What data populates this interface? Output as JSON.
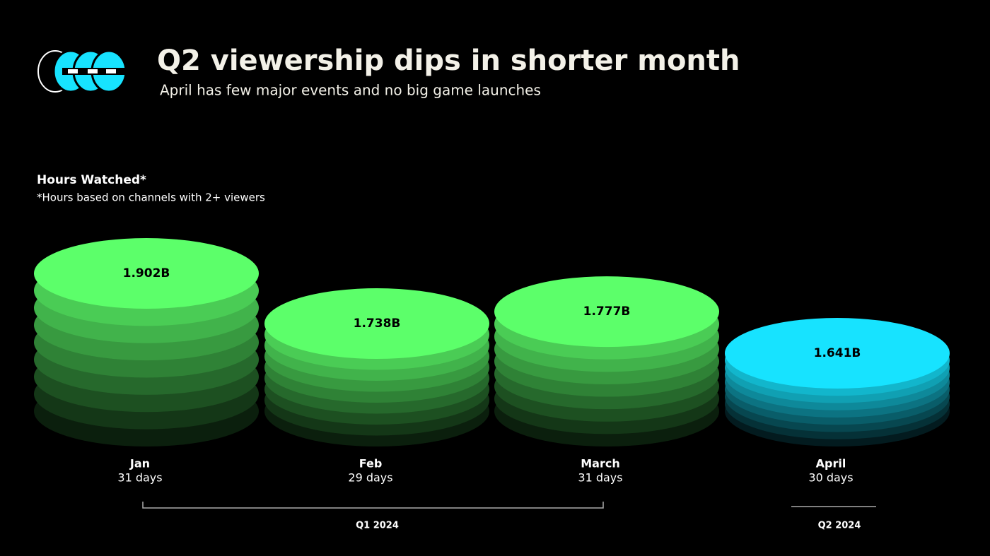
{
  "chart_data": {
    "type": "bar",
    "title": "Q2 viewership dips in shorter month",
    "subtitle": "April has few major events and no big game launches",
    "axis_label": "Hours Watched*",
    "note": "*Hours based on channels with 2+ viewers",
    "categories": [
      "Jan",
      "Feb",
      "March",
      "April"
    ],
    "sublabels": [
      "31 days",
      "29 days",
      "31 days",
      "30 days"
    ],
    "values": [
      1.902,
      1.738,
      1.777,
      1.641
    ],
    "value_labels": [
      "1.902B",
      "1.738B",
      "1.777B",
      "1.641B"
    ],
    "colors": [
      "#5cff6a",
      "#5cff6a",
      "#5cff6a",
      "#17e3ff"
    ],
    "groups": [
      {
        "label": "Q1 2024",
        "categories": [
          "Jan",
          "Feb",
          "March"
        ]
      },
      {
        "label": "Q2 2024",
        "categories": [
          "April"
        ]
      }
    ]
  }
}
